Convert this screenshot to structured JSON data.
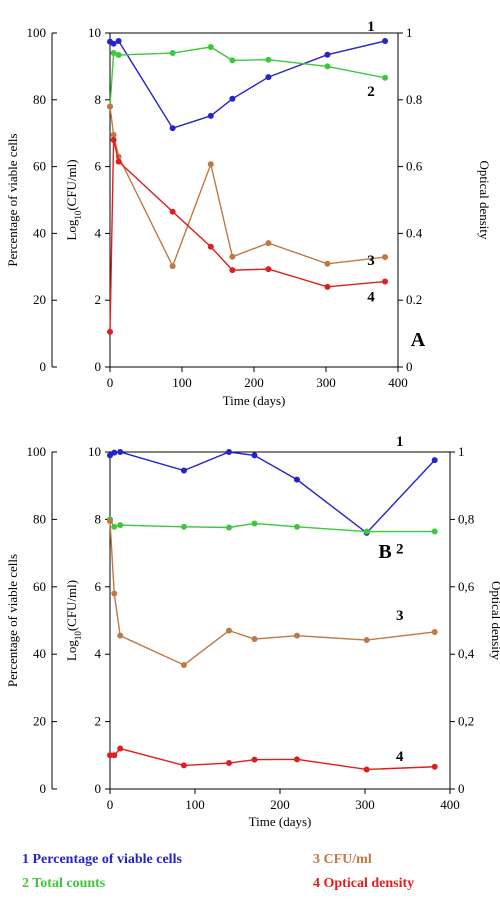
{
  "colors": {
    "s1": "#2424c8",
    "s2": "#3cc83c",
    "s3": "#c07846",
    "s4": "#e01e1e",
    "axis": "#000000"
  },
  "chart_data": [
    {
      "type": "line",
      "panel_label": "A",
      "xlabel": "Time (days)",
      "ylabel_left": "Percentage of viable cells",
      "ylabel_inner": "Log10(CFU/ml)",
      "ylabel_right": "Optical density",
      "xlim": [
        0,
        400
      ],
      "xticks": [
        "0",
        "100",
        "200",
        "300",
        "400"
      ],
      "ylim_left": [
        0,
        100
      ],
      "yticks_left": [
        "0",
        "20",
        "40",
        "60",
        "80",
        "100"
      ],
      "ylim_inner": [
        0,
        10
      ],
      "yticks_inner": [
        "0",
        "2",
        "4",
        "6",
        "8",
        "10"
      ],
      "ylim_right": [
        0,
        1
      ],
      "yticks_right": [
        "0",
        "0.2",
        "0.4",
        "0.6",
        "0.8",
        "1"
      ],
      "series": [
        {
          "id": "1",
          "label": "1",
          "axis": "left",
          "x": [
            0,
            5,
            12,
            87,
            140,
            170,
            220,
            302,
            382
          ],
          "y": [
            97.4,
            96.8,
            97.6,
            71.5,
            75.2,
            80.3,
            86.8,
            93.5,
            97.6
          ]
        },
        {
          "id": "2",
          "label": "2",
          "axis": "left",
          "x": [
            0,
            5,
            12,
            87,
            140,
            170,
            220,
            302,
            382
          ],
          "y": [
            78.0,
            94.0,
            93.4,
            94.0,
            95.8,
            91.8,
            92.0,
            90.0,
            86.6
          ]
        },
        {
          "id": "3",
          "label": "3",
          "axis": "inner",
          "x": [
            0,
            5,
            12,
            87,
            140,
            170,
            220,
            302,
            382
          ],
          "y": [
            7.8,
            6.95,
            6.3,
            3.02,
            6.07,
            3.3,
            3.71,
            3.09,
            3.29
          ]
        },
        {
          "id": "4",
          "label": "4",
          "axis": "right",
          "x": [
            0,
            5,
            12,
            87,
            140,
            170,
            220,
            302,
            382
          ],
          "y": [
            0.105,
            0.68,
            0.615,
            0.465,
            0.36,
            0.29,
            0.293,
            0.24,
            0.256
          ]
        }
      ]
    },
    {
      "type": "line",
      "panel_label": "B",
      "xlabel": "Time (days)",
      "ylabel_left": "Percentage of viable cells",
      "ylabel_inner": "Log10(CFU/ml)",
      "ylabel_right": "Optical density",
      "xlim": [
        0,
        400
      ],
      "xticks": [
        "0",
        "100",
        "200",
        "300",
        "400"
      ],
      "ylim_left": [
        0,
        100
      ],
      "yticks_left": [
        "0",
        "20",
        "40",
        "60",
        "80",
        "100"
      ],
      "ylim_inner": [
        0,
        10
      ],
      "yticks_inner": [
        "0",
        "2",
        "4",
        "6",
        "8",
        "10"
      ],
      "ylim_right": [
        0,
        1
      ],
      "yticks_right": [
        "0",
        "0,2",
        "0,4",
        "0,6",
        "0,8",
        "1"
      ],
      "series": [
        {
          "id": "1",
          "label": "1",
          "axis": "left",
          "x": [
            0,
            5,
            12,
            87,
            140,
            170,
            220,
            302,
            382
          ],
          "y": [
            99.0,
            99.8,
            100.0,
            94.5,
            100.0,
            99.0,
            91.8,
            76.0,
            97.6
          ]
        },
        {
          "id": "2",
          "label": "2",
          "axis": "left",
          "x": [
            0,
            5,
            12,
            87,
            140,
            170,
            220,
            302,
            382
          ],
          "y": [
            80.0,
            77.8,
            78.3,
            77.8,
            77.6,
            78.8,
            77.8,
            76.4,
            76.4
          ]
        },
        {
          "id": "3",
          "label": "3",
          "axis": "inner",
          "x": [
            0,
            5,
            12,
            87,
            140,
            170,
            220,
            302,
            382
          ],
          "y": [
            7.95,
            5.8,
            4.55,
            3.68,
            4.7,
            4.45,
            4.55,
            4.42,
            4.66
          ]
        },
        {
          "id": "4",
          "label": "4",
          "axis": "right",
          "x": [
            0,
            5,
            12,
            87,
            140,
            170,
            220,
            302,
            382
          ],
          "y": [
            0.1,
            0.1,
            0.12,
            0.07,
            0.077,
            0.087,
            0.088,
            0.058,
            0.066
          ]
        }
      ]
    }
  ],
  "legend": [
    {
      "number": "1",
      "text": "Percentage of viable cells"
    },
    {
      "number": "2",
      "text": "Total counts"
    },
    {
      "number": "3",
      "text": "CFU/ml"
    },
    {
      "number": "4",
      "text": "Optical density"
    }
  ]
}
